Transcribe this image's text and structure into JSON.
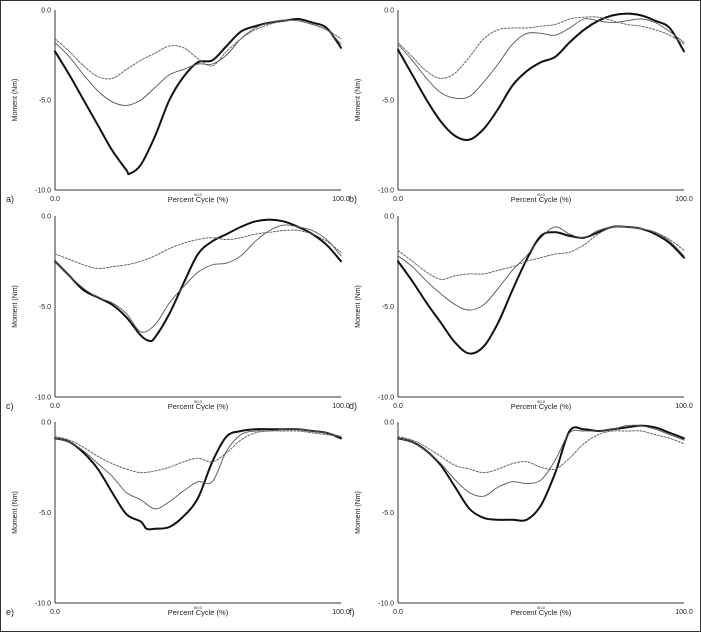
{
  "figure": {
    "panels": [
      {
        "id": "a",
        "label": "a)",
        "xlabel": "Percent Cycle (%)",
        "ylabel": "Moment (Nm)",
        "x_ticks": [
          "0.0",
          "50.0",
          "100.0"
        ],
        "y_ticks": [
          "0.0",
          "-5.0",
          "-10.0"
        ]
      },
      {
        "id": "b",
        "label": "b)",
        "xlabel": "Percent Cycle (%)",
        "ylabel": "Moment (Nm)",
        "x_ticks": [
          "0.0",
          "50.0",
          "100.0"
        ],
        "y_ticks": [
          "0.0",
          "-5.0",
          "-10.0"
        ]
      },
      {
        "id": "c",
        "label": "c)",
        "xlabel": "Percent Cycle (%)",
        "ylabel": "Moment (Nm)",
        "x_ticks": [
          "0.0",
          "50.0",
          "100.0"
        ],
        "y_ticks": [
          "0.0",
          "-5.0",
          "-10.0"
        ]
      },
      {
        "id": "d",
        "label": "d)",
        "xlabel": "Percent Cycle (%)",
        "ylabel": "Moment (Nm)",
        "x_ticks": [
          "0.0",
          "50.0",
          "100.0"
        ],
        "y_ticks": [
          "0.0",
          "-5.0",
          "-10.0"
        ]
      },
      {
        "id": "e",
        "label": "e)",
        "xlabel": "Percent Cycle (%)",
        "ylabel": "Moment (Nm)",
        "x_ticks": [
          "0.0",
          "50.0",
          "100.0"
        ],
        "y_ticks": [
          "0.0",
          "-5.0",
          "-10.0"
        ]
      },
      {
        "id": "f",
        "label": "f)",
        "xlabel": "Percent Cycle (%)",
        "ylabel": "Moment (Nm)",
        "x_ticks": [
          "0.0",
          "50.0",
          "100.0"
        ],
        "y_ticks": [
          "0.0",
          "-5.0",
          "-10.0"
        ]
      }
    ]
  },
  "chart_data": [
    {
      "type": "line",
      "panel": "a",
      "xlabel": "Percent Cycle (%)",
      "ylabel": "Moment (Nm)",
      "xlim": [
        0,
        100
      ],
      "ylim": [
        -10,
        0
      ],
      "grid": false,
      "series": [
        {
          "style": "thick",
          "x": [
            0,
            5,
            10,
            15,
            20,
            25,
            26,
            30,
            35,
            40,
            45,
            50,
            55,
            60,
            65,
            70,
            75,
            80,
            85,
            90,
            95,
            100
          ],
          "y": [
            -2.3,
            -3.6,
            -5.0,
            -6.4,
            -7.8,
            -8.9,
            -9.1,
            -8.6,
            -7.0,
            -5.0,
            -3.7,
            -2.9,
            -2.8,
            -2.0,
            -1.2,
            -0.9,
            -0.7,
            -0.6,
            -0.5,
            -0.7,
            -1.0,
            -2.1
          ]
        },
        {
          "style": "thin",
          "x": [
            0,
            5,
            10,
            15,
            20,
            25,
            30,
            35,
            40,
            45,
            50,
            55,
            60,
            65,
            70,
            75,
            80,
            85,
            90,
            95,
            100
          ],
          "y": [
            -1.8,
            -2.6,
            -3.6,
            -4.5,
            -5.1,
            -5.3,
            -5.0,
            -4.3,
            -3.6,
            -3.3,
            -3.0,
            -3.0,
            -2.5,
            -1.6,
            -1.0,
            -0.7,
            -0.55,
            -0.6,
            -0.8,
            -1.1,
            -1.9
          ]
        },
        {
          "style": "dotted",
          "x": [
            0,
            5,
            10,
            15,
            20,
            25,
            30,
            35,
            40,
            45,
            50,
            55,
            60,
            65,
            70,
            75,
            80,
            85,
            90,
            95,
            100
          ],
          "y": [
            -1.6,
            -2.3,
            -3.1,
            -3.7,
            -3.8,
            -3.3,
            -2.8,
            -2.4,
            -2.0,
            -2.1,
            -2.7,
            -3.1,
            -2.3,
            -1.6,
            -1.1,
            -0.8,
            -0.6,
            -0.6,
            -0.8,
            -1.1,
            -1.6
          ]
        }
      ]
    },
    {
      "type": "line",
      "panel": "b",
      "xlabel": "Percent Cycle (%)",
      "ylabel": "Moment (Nm)",
      "xlim": [
        0,
        100
      ],
      "ylim": [
        -10,
        0
      ],
      "grid": false,
      "series": [
        {
          "style": "thick",
          "x": [
            0,
            5,
            10,
            15,
            20,
            25,
            30,
            35,
            40,
            45,
            50,
            55,
            60,
            65,
            70,
            75,
            80,
            85,
            90,
            95,
            100
          ],
          "y": [
            -2.2,
            -3.6,
            -5.0,
            -6.2,
            -7.0,
            -7.2,
            -6.6,
            -5.5,
            -4.2,
            -3.4,
            -2.9,
            -2.6,
            -1.8,
            -1.1,
            -0.6,
            -0.3,
            -0.2,
            -0.3,
            -0.6,
            -1.0,
            -2.3
          ]
        },
        {
          "style": "thin",
          "x": [
            0,
            5,
            10,
            15,
            20,
            25,
            30,
            35,
            40,
            45,
            50,
            55,
            60,
            65,
            70,
            75,
            80,
            85,
            90,
            95,
            100
          ],
          "y": [
            -1.9,
            -2.8,
            -3.8,
            -4.6,
            -4.9,
            -4.8,
            -4.0,
            -3.0,
            -1.9,
            -1.3,
            -1.3,
            -1.4,
            -1.0,
            -0.5,
            -0.6,
            -0.7,
            -0.6,
            -0.5,
            -0.7,
            -1.2,
            -1.8
          ]
        },
        {
          "style": "dotted",
          "x": [
            0,
            5,
            10,
            15,
            20,
            25,
            30,
            35,
            40,
            45,
            50,
            55,
            60,
            65,
            70,
            75,
            80,
            85,
            90,
            95,
            100
          ],
          "y": [
            -1.8,
            -2.6,
            -3.4,
            -3.8,
            -3.5,
            -2.6,
            -1.6,
            -1.1,
            -1.0,
            -1.0,
            -0.9,
            -0.8,
            -0.5,
            -0.4,
            -0.4,
            -0.6,
            -0.8,
            -0.9,
            -1.1,
            -1.4,
            -1.9
          ]
        }
      ]
    },
    {
      "type": "line",
      "panel": "c",
      "xlabel": "Percent Cycle (%)",
      "ylabel": "Moment (Nm)",
      "xlim": [
        0,
        100
      ],
      "ylim": [
        -10,
        0
      ],
      "grid": false,
      "series": [
        {
          "style": "thick",
          "x": [
            0,
            5,
            10,
            15,
            20,
            25,
            30,
            33,
            35,
            40,
            45,
            50,
            55,
            60,
            65,
            70,
            75,
            80,
            85,
            90,
            95,
            100
          ],
          "y": [
            -2.5,
            -3.3,
            -4.1,
            -4.5,
            -4.9,
            -5.6,
            -6.6,
            -6.9,
            -6.7,
            -5.4,
            -3.7,
            -2.1,
            -1.4,
            -1.0,
            -0.6,
            -0.3,
            -0.2,
            -0.3,
            -0.6,
            -1.0,
            -1.6,
            -2.5
          ]
        },
        {
          "style": "thin",
          "x": [
            0,
            5,
            10,
            15,
            20,
            25,
            30,
            35,
            40,
            45,
            50,
            55,
            60,
            65,
            70,
            75,
            80,
            85,
            90,
            95,
            100
          ],
          "y": [
            -2.5,
            -3.3,
            -4.0,
            -4.5,
            -4.8,
            -5.4,
            -6.4,
            -6.0,
            -4.8,
            -3.9,
            -3.1,
            -2.7,
            -2.6,
            -2.2,
            -1.4,
            -0.8,
            -0.5,
            -0.6,
            -0.8,
            -1.3,
            -2.2
          ]
        },
        {
          "style": "dotted",
          "x": [
            0,
            5,
            10,
            15,
            20,
            25,
            30,
            35,
            40,
            45,
            50,
            55,
            60,
            65,
            70,
            75,
            80,
            85,
            90,
            95,
            100
          ],
          "y": [
            -2.1,
            -2.4,
            -2.7,
            -2.9,
            -2.8,
            -2.7,
            -2.5,
            -2.2,
            -1.8,
            -1.5,
            -1.3,
            -1.2,
            -1.3,
            -1.2,
            -1.0,
            -0.9,
            -0.8,
            -0.8,
            -1.0,
            -1.4,
            -2.0
          ]
        }
      ]
    },
    {
      "type": "line",
      "panel": "d",
      "xlabel": "Percent Cycle (%)",
      "ylabel": "Moment (Nm)",
      "xlim": [
        0,
        100
      ],
      "ylim": [
        -10,
        0
      ],
      "grid": false,
      "series": [
        {
          "style": "thick",
          "x": [
            0,
            5,
            10,
            15,
            20,
            25,
            30,
            35,
            40,
            45,
            50,
            55,
            60,
            65,
            70,
            75,
            80,
            85,
            90,
            95,
            100
          ],
          "y": [
            -2.5,
            -3.6,
            -4.8,
            -5.9,
            -7.0,
            -7.6,
            -7.2,
            -5.9,
            -4.1,
            -2.4,
            -1.1,
            -0.9,
            -1.1,
            -1.2,
            -0.9,
            -0.6,
            -0.6,
            -0.7,
            -1.0,
            -1.5,
            -2.3
          ]
        },
        {
          "style": "thin",
          "x": [
            0,
            5,
            10,
            15,
            20,
            25,
            30,
            35,
            40,
            45,
            50,
            55,
            60,
            65,
            70,
            75,
            80,
            85,
            90,
            95,
            100
          ],
          "y": [
            -2.2,
            -2.8,
            -3.6,
            -4.3,
            -4.9,
            -5.2,
            -4.9,
            -4.0,
            -3.0,
            -2.2,
            -1.2,
            -0.6,
            -1.0,
            -1.2,
            -0.8,
            -0.6,
            -0.6,
            -0.7,
            -0.9,
            -1.4,
            -2.2
          ]
        },
        {
          "style": "dotted",
          "x": [
            0,
            5,
            10,
            15,
            20,
            25,
            30,
            35,
            40,
            45,
            50,
            55,
            60,
            65,
            70,
            75,
            80,
            85,
            90,
            95,
            100
          ],
          "y": [
            -1.9,
            -2.5,
            -3.1,
            -3.5,
            -3.3,
            -3.2,
            -3.2,
            -3.0,
            -2.8,
            -2.5,
            -2.3,
            -2.1,
            -2.0,
            -1.6,
            -1.0,
            -0.6,
            -0.6,
            -0.7,
            -0.9,
            -1.3,
            -1.9
          ]
        }
      ]
    },
    {
      "type": "line",
      "panel": "e",
      "xlabel": "Percent Cycle (%)",
      "ylabel": "Moment (Nm)",
      "xlim": [
        0,
        100
      ],
      "ylim": [
        -10,
        0
      ],
      "grid": false,
      "series": [
        {
          "style": "thick",
          "x": [
            0,
            5,
            10,
            15,
            20,
            25,
            30,
            32,
            35,
            40,
            45,
            50,
            55,
            60,
            65,
            70,
            75,
            80,
            85,
            90,
            95,
            100
          ],
          "y": [
            -0.9,
            -1.1,
            -1.7,
            -2.6,
            -3.9,
            -5.1,
            -5.5,
            -5.9,
            -5.9,
            -5.8,
            -5.2,
            -4.2,
            -2.2,
            -0.8,
            -0.5,
            -0.4,
            -0.4,
            -0.4,
            -0.4,
            -0.5,
            -0.6,
            -0.9
          ]
        },
        {
          "style": "thin",
          "x": [
            0,
            5,
            10,
            15,
            20,
            25,
            30,
            35,
            40,
            45,
            50,
            55,
            60,
            65,
            70,
            75,
            80,
            85,
            90,
            95,
            100
          ],
          "y": [
            -0.9,
            -1.1,
            -1.6,
            -2.3,
            -3.0,
            -3.9,
            -4.3,
            -4.8,
            -4.4,
            -3.8,
            -3.3,
            -3.3,
            -1.6,
            -0.7,
            -0.5,
            -0.5,
            -0.4,
            -0.4,
            -0.5,
            -0.6,
            -0.8
          ]
        },
        {
          "style": "dotted",
          "x": [
            0,
            5,
            10,
            15,
            20,
            25,
            30,
            35,
            40,
            45,
            50,
            55,
            60,
            65,
            70,
            75,
            80,
            85,
            90,
            95,
            100
          ],
          "y": [
            -0.8,
            -1.0,
            -1.4,
            -1.9,
            -2.3,
            -2.6,
            -2.8,
            -2.7,
            -2.5,
            -2.2,
            -2.0,
            -2.2,
            -1.7,
            -1.0,
            -0.6,
            -0.5,
            -0.5,
            -0.5,
            -0.6,
            -0.7,
            -0.8
          ]
        }
      ]
    },
    {
      "type": "line",
      "panel": "f",
      "xlabel": "Percent Cycle (%)",
      "ylabel": "Moment (Nm)",
      "xlim": [
        0,
        100
      ],
      "ylim": [
        -10,
        0
      ],
      "grid": false,
      "series": [
        {
          "style": "thick",
          "x": [
            0,
            5,
            10,
            15,
            20,
            25,
            30,
            35,
            40,
            45,
            50,
            55,
            60,
            65,
            70,
            75,
            80,
            85,
            90,
            95,
            100
          ],
          "y": [
            -0.9,
            -1.1,
            -1.6,
            -2.4,
            -3.6,
            -4.8,
            -5.3,
            -5.4,
            -5.4,
            -5.4,
            -4.6,
            -2.8,
            -0.5,
            -0.4,
            -0.5,
            -0.4,
            -0.3,
            -0.2,
            -0.3,
            -0.6,
            -0.9
          ]
        },
        {
          "style": "thin",
          "x": [
            0,
            5,
            10,
            15,
            20,
            25,
            30,
            35,
            40,
            45,
            50,
            55,
            60,
            65,
            70,
            75,
            80,
            85,
            90,
            95,
            100
          ],
          "y": [
            -0.9,
            -1.1,
            -1.6,
            -2.3,
            -3.2,
            -3.9,
            -4.1,
            -3.6,
            -3.3,
            -3.4,
            -3.2,
            -2.1,
            -0.6,
            -0.5,
            -0.5,
            -0.4,
            -0.2,
            -0.2,
            -0.4,
            -0.7,
            -1.0
          ]
        },
        {
          "style": "dotted",
          "x": [
            0,
            5,
            10,
            15,
            20,
            25,
            30,
            35,
            40,
            45,
            50,
            55,
            60,
            65,
            70,
            75,
            80,
            85,
            90,
            95,
            100
          ],
          "y": [
            -0.8,
            -1.0,
            -1.4,
            -1.9,
            -2.4,
            -2.6,
            -2.8,
            -2.6,
            -2.3,
            -2.2,
            -2.5,
            -2.6,
            -2.0,
            -1.2,
            -0.7,
            -0.5,
            -0.5,
            -0.5,
            -0.7,
            -0.9,
            -1.2
          ]
        }
      ]
    }
  ]
}
